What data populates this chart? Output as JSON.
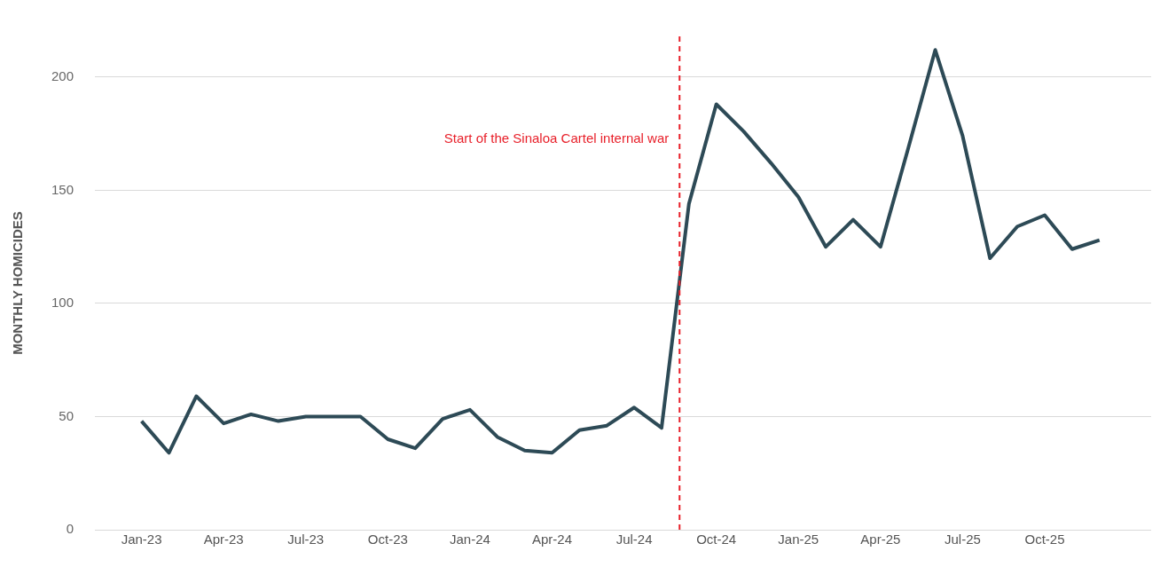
{
  "chart_data": {
    "type": "line",
    "ylabel": "MONTHLY HOMICIDES",
    "x": [
      "2023-01",
      "2023-02",
      "2023-03",
      "2023-04",
      "2023-05",
      "2023-06",
      "2023-07",
      "2023-08",
      "2023-09",
      "2023-10",
      "2023-11",
      "2023-12",
      "2024-01",
      "2024-02",
      "2024-03",
      "2024-04",
      "2024-05",
      "2024-06",
      "2024-07",
      "2024-08",
      "2024-09",
      "2024-10",
      "2024-11",
      "2024-12",
      "2025-01",
      "2025-02",
      "2025-03",
      "2025-04",
      "2025-05",
      "2025-06",
      "2025-07",
      "2025-08",
      "2025-09",
      "2025-10",
      "2025-11",
      "2025-12"
    ],
    "series": [
      {
        "color": "#2d4a56",
        "values": [
          48,
          34,
          59,
          47,
          51,
          48,
          50,
          50,
          50,
          40,
          36,
          49,
          53,
          41,
          35,
          34,
          44,
          46,
          54,
          45,
          144,
          188,
          176,
          162,
          147,
          125,
          137,
          125,
          168,
          212,
          174,
          120,
          134,
          139,
          124,
          128
        ]
      }
    ],
    "xlim": [
      "2022-11-10",
      "2026-01-28"
    ],
    "xticks": [
      {
        "value": "2023-01",
        "label": "Jan-23"
      },
      {
        "value": "2023-04",
        "label": "Apr-23"
      },
      {
        "value": "2023-07",
        "label": "Jul-23"
      },
      {
        "value": "2023-10",
        "label": "Oct-23"
      },
      {
        "value": "2024-01",
        "label": "Jan-24"
      },
      {
        "value": "2024-04",
        "label": "Apr-24"
      },
      {
        "value": "2024-07",
        "label": "Jul-24"
      },
      {
        "value": "2024-10",
        "label": "Oct-24"
      },
      {
        "value": "2025-01",
        "label": "Jan-25"
      },
      {
        "value": "2025-04",
        "label": "Apr-25"
      },
      {
        "value": "2025-07",
        "label": "Jul-25"
      },
      {
        "value": "2025-10",
        "label": "Oct-25"
      }
    ],
    "ylim": [
      0,
      218
    ],
    "yticks": [
      0,
      50,
      100,
      150,
      200
    ],
    "ref_lines": [
      {
        "axis": "x",
        "value": "2024-08-21",
        "label": "Start of the Sinaloa Cartel internal war",
        "color": "#e8202a",
        "line_style": "dashed"
      }
    ],
    "grid": "y",
    "legend": false
  }
}
